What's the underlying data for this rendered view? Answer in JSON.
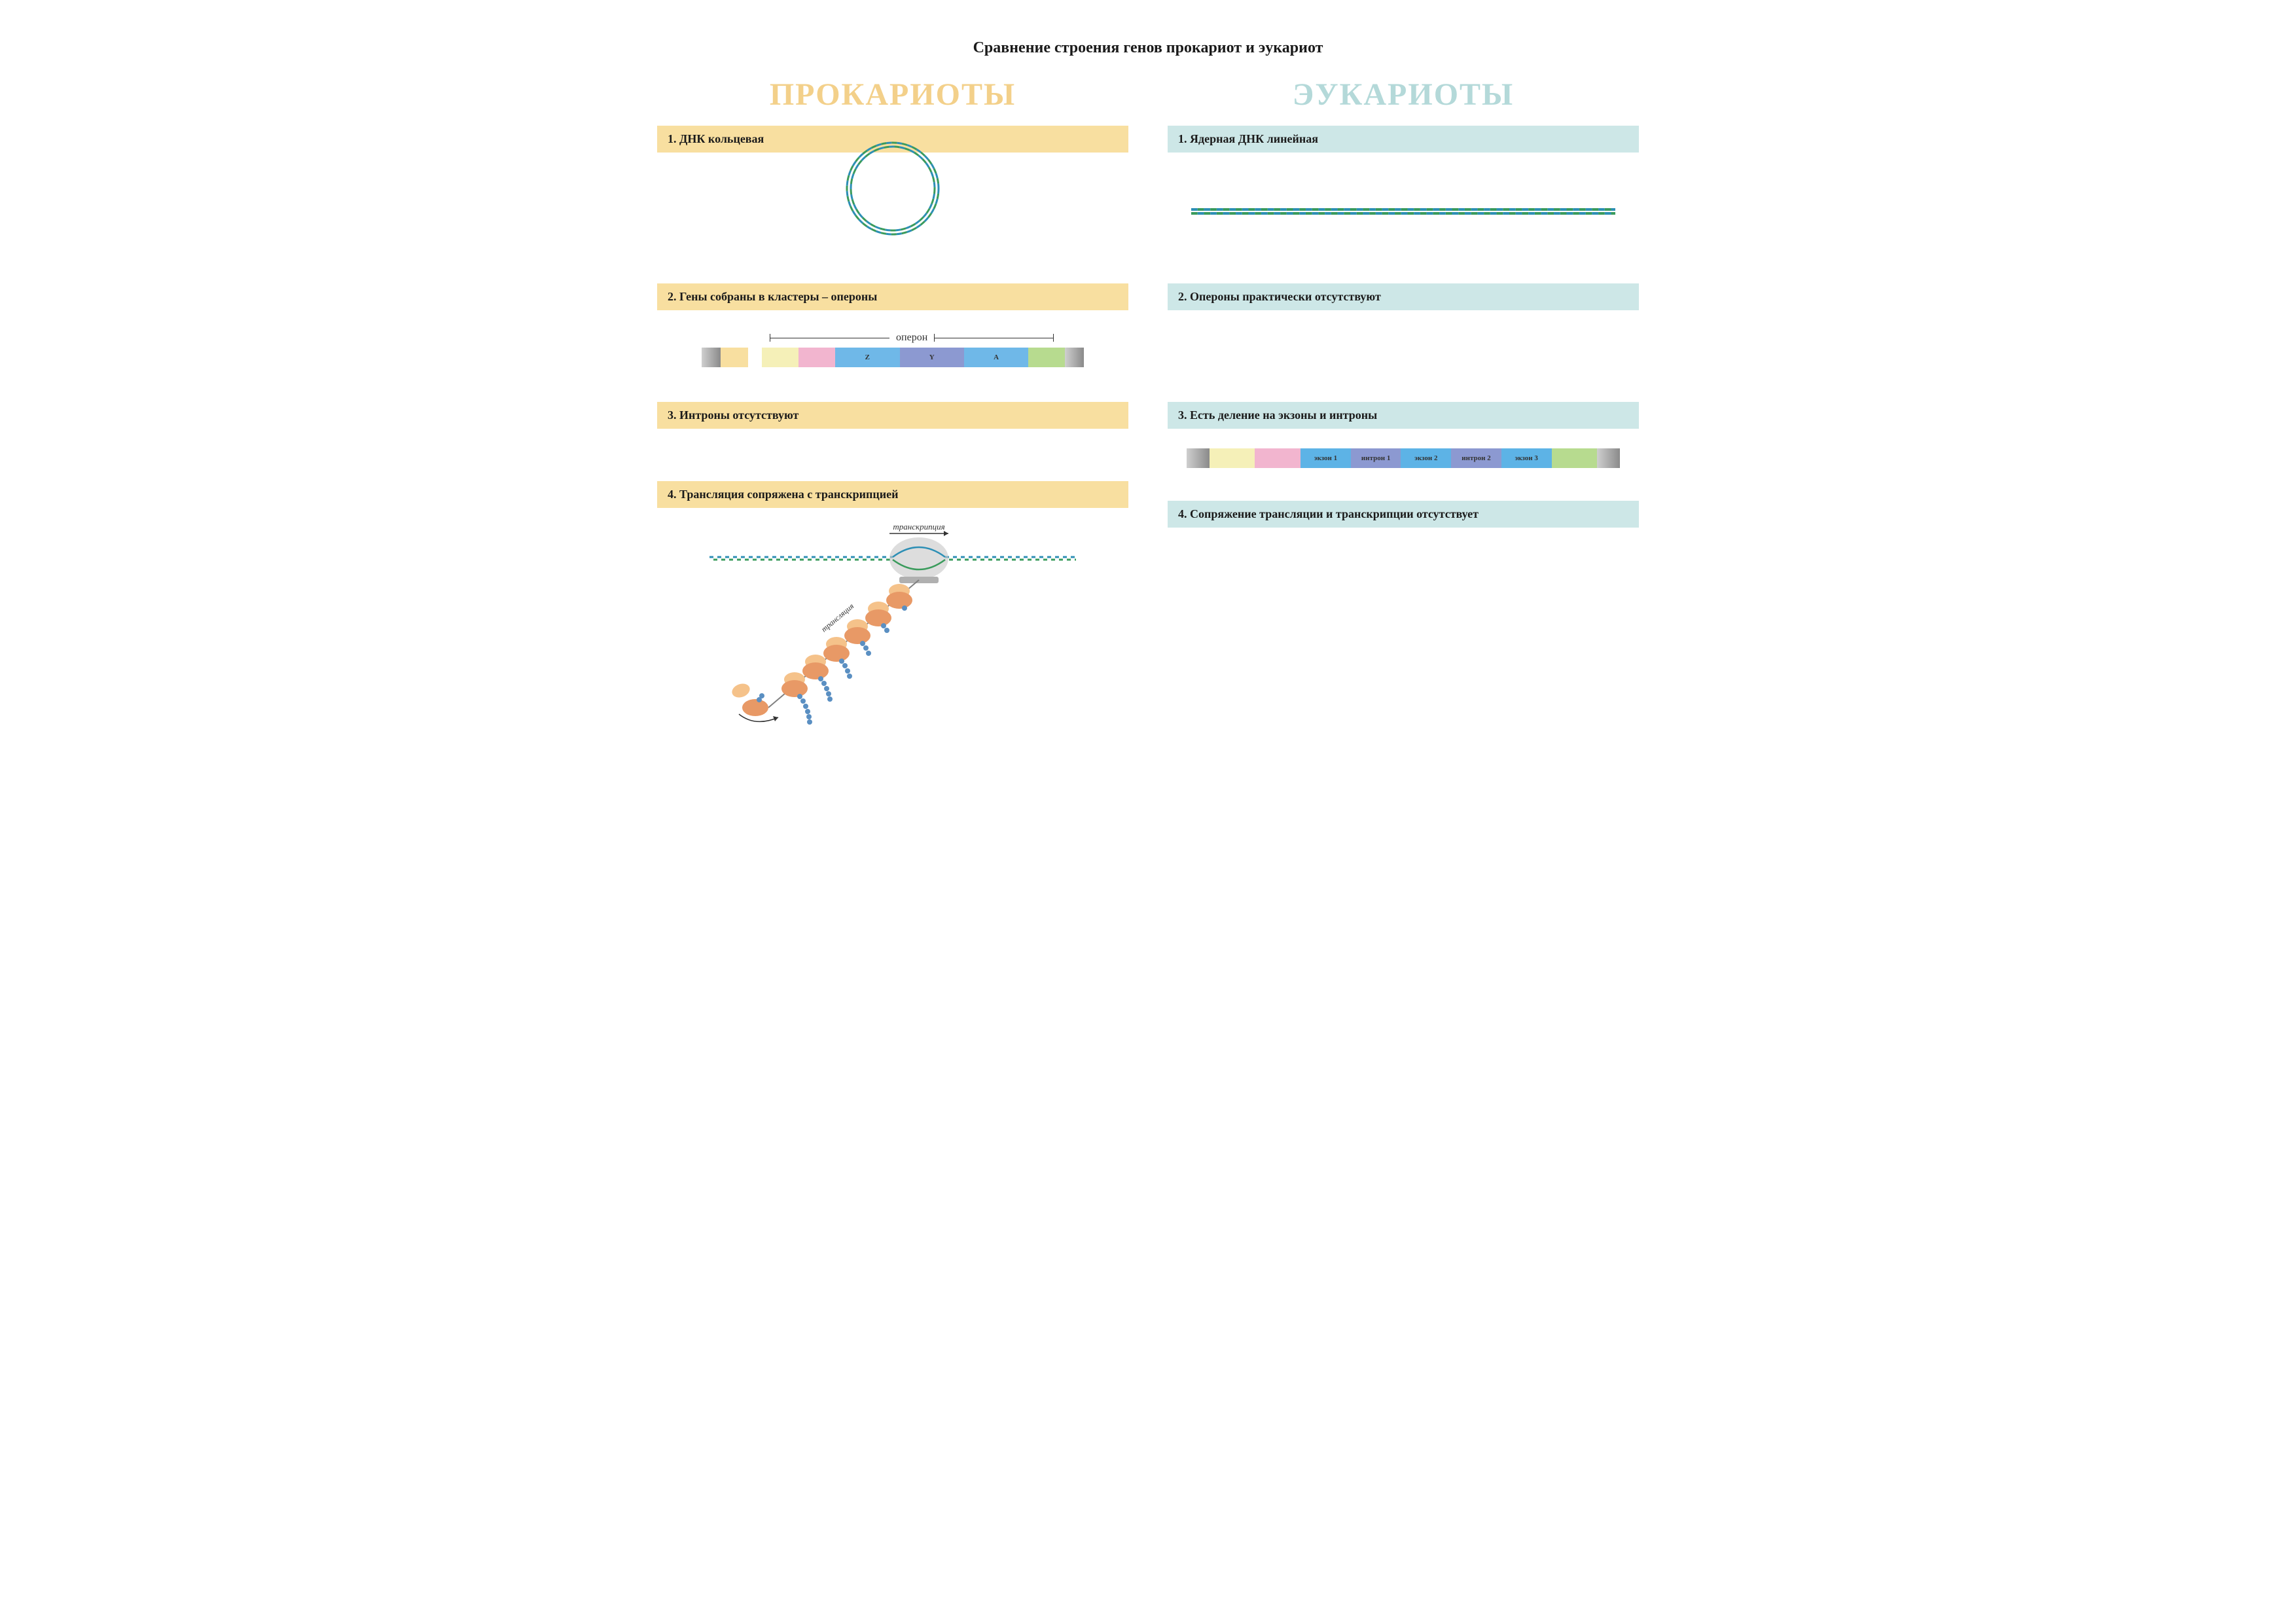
{
  "title": "Сравнение строения генов прокариот и эукариот",
  "left": {
    "heading": "ПРОКАРИОТЫ",
    "heading_color": "#f3d08a",
    "bar_color": "#f8dfa0",
    "sections": {
      "s1": "1. ДНК кольцевая",
      "s2": "2. Гены собраны в кластеры – опероны",
      "s3": "3. Интроны отсутствуют",
      "s4": "4. Трансляция сопряжена с транскрипцией"
    }
  },
  "right": {
    "heading": "ЭУКАРИОТЫ",
    "heading_color": "#b4d9d9",
    "bar_color": "#cde7e7",
    "sections": {
      "s1": "1. Ядерная ДНК линейная",
      "s2": "2. Опероны практически отсутствуют",
      "s3": "3. Есть деление на экзоны и интроны",
      "s4": "4. Сопряжение трансляции и транскрипции отсутствует"
    }
  },
  "operon": {
    "label": "оперон",
    "segments": [
      {
        "label": "",
        "color": "#a8a8a8",
        "width": 4
      },
      {
        "label": "",
        "color": "#f8dfa0",
        "width": 6
      },
      {
        "label": "",
        "color": "#ffffff",
        "width": 3
      },
      {
        "label": "",
        "color": "#f5f0b8",
        "width": 8
      },
      {
        "label": "",
        "color": "#f2b5cf",
        "width": 8
      },
      {
        "label": "Z",
        "color": "#6fb8e8",
        "width": 14
      },
      {
        "label": "Y",
        "color": "#8c99d1",
        "width": 14
      },
      {
        "label": "A",
        "color": "#6fb8e8",
        "width": 14
      },
      {
        "label": "",
        "color": "#b7db8f",
        "width": 8
      },
      {
        "label": "",
        "color": "#a8a8a8",
        "width": 4
      }
    ]
  },
  "exon_intron": {
    "segments": [
      {
        "label": "",
        "color": "#a8a8a8",
        "width": 5
      },
      {
        "label": "",
        "color": "#f5f0b8",
        "width": 10
      },
      {
        "label": "",
        "color": "#f2b5cf",
        "width": 10
      },
      {
        "label": "экзон 1",
        "color": "#5db3e6",
        "width": 11
      },
      {
        "label": "интрон 1",
        "color": "#8c99d1",
        "width": 11
      },
      {
        "label": "экзон 2",
        "color": "#5db3e6",
        "width": 11
      },
      {
        "label": "интрон 2",
        "color": "#8c99d1",
        "width": 11
      },
      {
        "label": "экзон 3",
        "color": "#5db3e6",
        "width": 11
      },
      {
        "label": "",
        "color": "#b7db8f",
        "width": 10
      },
      {
        "label": "",
        "color": "#a8a8a8",
        "width": 5
      }
    ]
  },
  "dna_colors": {
    "strand1": "#2d8fb5",
    "strand2": "#3a9b5c"
  },
  "translation": {
    "transcription_label": "транскрипция",
    "translation_label": "трансляция",
    "bubble_color": "#c7c7c7",
    "ribosome_top": "#f5c28a",
    "ribosome_bottom": "#e89966",
    "peptide_color": "#5a8fc2",
    "mrna_color": "#808080"
  }
}
